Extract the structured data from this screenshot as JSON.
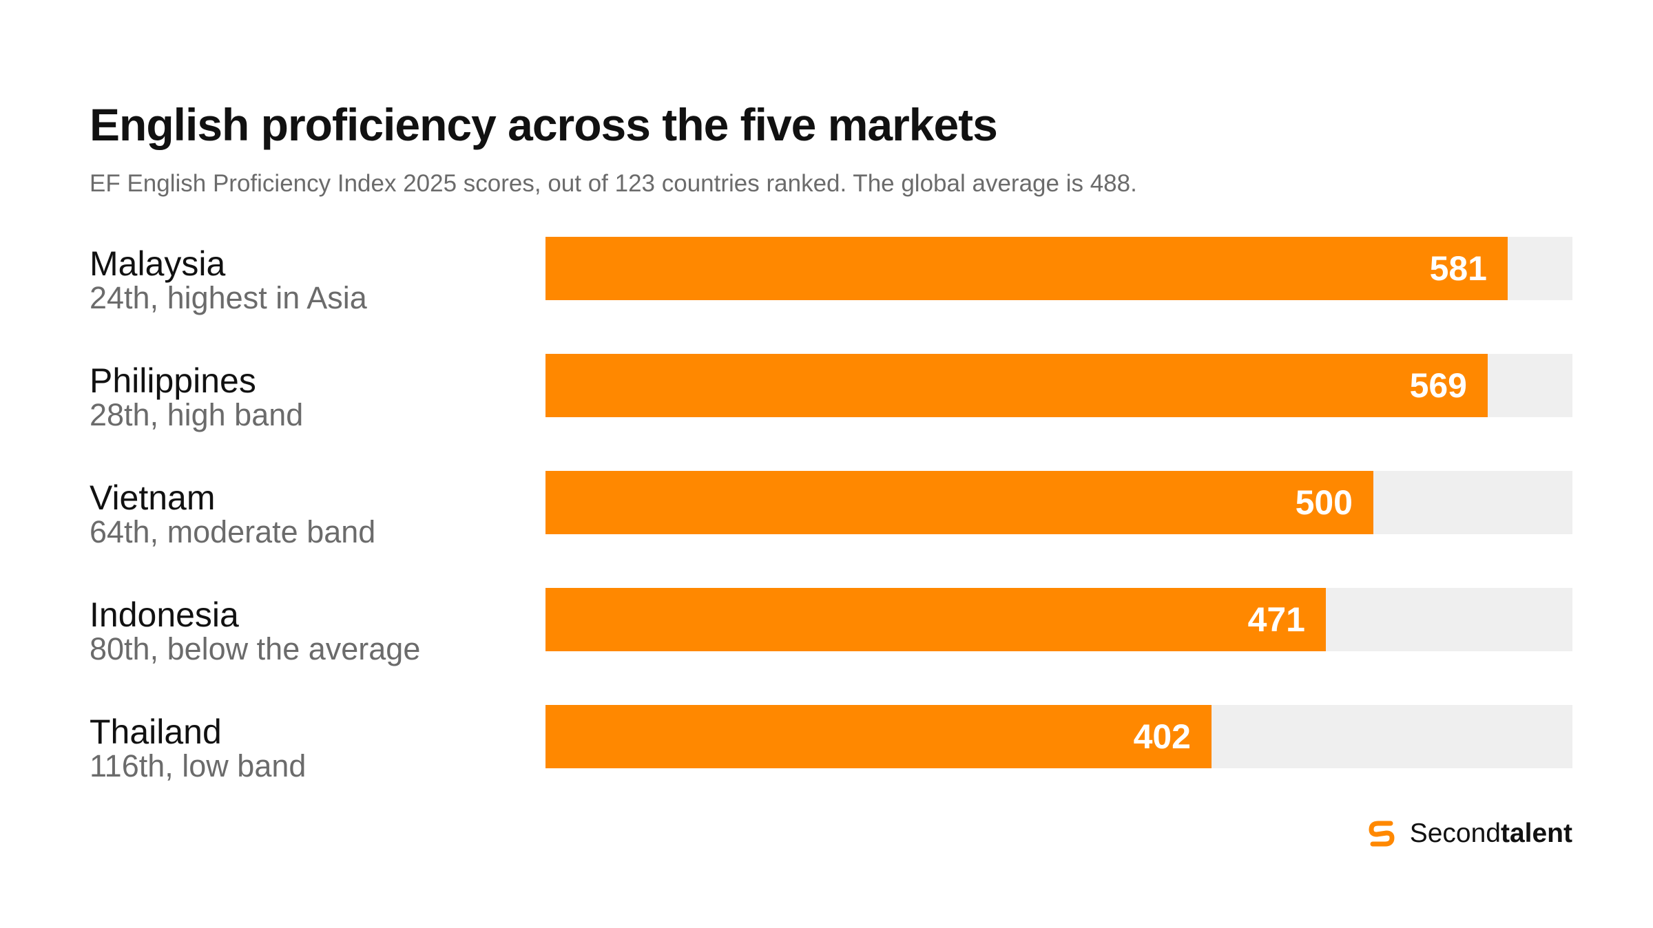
{
  "title": "English proficiency across the five markets",
  "subtitle": "EF English Proficiency Index 2025 scores, out of 123 countries ranked. The global average is 488.",
  "colors": {
    "bar": "#ff8800",
    "track": "#efefef",
    "value_text": "#ffffff",
    "label": "#111111",
    "sublabel": "#6b6b6b"
  },
  "brand": {
    "icon": "secondtalent-logo-icon",
    "name_regular": "Second",
    "name_bold": "talent"
  },
  "chart_data": {
    "type": "bar",
    "orientation": "horizontal",
    "categories": [
      "Malaysia",
      "Philippines",
      "Vietnam",
      "Indonesia",
      "Thailand"
    ],
    "details": [
      "24th, highest in Asia",
      "28th, high band",
      "64th, moderate band",
      "80th, below the average",
      "116th, low band"
    ],
    "values": [
      581,
      569,
      500,
      471,
      402
    ],
    "xlim": [
      0,
      620
    ],
    "grid": false,
    "legend": "none"
  }
}
